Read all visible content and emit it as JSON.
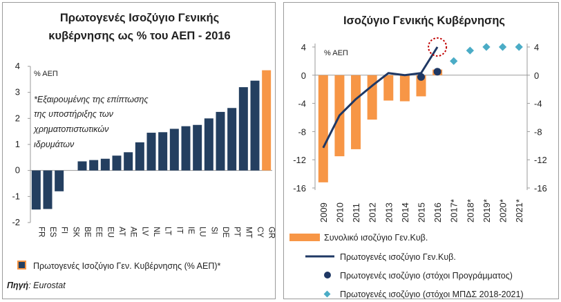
{
  "colors": {
    "navy": "#243f60",
    "orange": "#f79646",
    "teal": "#4bacc6",
    "line": "#1f3864",
    "marker": "#1f3864",
    "circle": "#c00000"
  },
  "left_chart": {
    "title_lines": [
      "Πρωτογενές Ισοζύγιο Γενικής",
      "κυβέρνησης ως % του ΑΕΠ - 2016"
    ],
    "unit_label": "% ΑΕΠ",
    "note_lines": [
      "*Εξαιρουμένης της επίπτωσης",
      "της υποστήριξης των",
      "χρηματοπιστωτικών",
      "ιδρυμάτων"
    ],
    "legend_label": "Πρωτογενές Ισοζύγιο Γεν. Κυβέρνησης (% ΑΕΠ)*",
    "source_label": "Πηγή",
    "source_value": ": Eurostat",
    "y_ticks": [
      "4",
      "3",
      "2",
      "1",
      "0",
      "-1",
      "-2"
    ]
  },
  "right_chart": {
    "title": "Ισοζύγιο Γενικής Κυβέρνησης",
    "unit_label": "% ΑΕΠ",
    "y_ticks": [
      "4",
      "0",
      "-4",
      "-8",
      "-12",
      "-16"
    ],
    "legend": [
      {
        "label": "Συνολικό ισοζύγιο Γεν.Κυβ."
      },
      {
        "label": "Πρωτογενές ισοζύγιο Γεν.Κυβ."
      },
      {
        "label": "Πρωτογενές ισοζύγιο (στόχοι Προγράμματος)"
      },
      {
        "label": "Πρωτογενές ισοζύγιο (στόχοι ΜΠΔΣ 2018-2021)"
      }
    ]
  },
  "chart_data": [
    {
      "type": "bar",
      "title": "Πρωτογενές Ισοζύγιο Γενικής κυβέρνησης ως % του ΑΕΠ - 2016",
      "ylabel": "% ΑΕΠ",
      "ylim": [
        -2,
        4
      ],
      "categories": [
        "FR",
        "ES",
        "FI",
        "SK",
        "BE",
        "EE",
        "EU",
        "AT",
        "AE",
        "LV",
        "NL",
        "LT",
        "IT",
        "IE",
        "LU",
        "SI",
        "DE",
        "PT",
        "MT",
        "CY",
        "GR"
      ],
      "series": [
        {
          "name": "Πρωτογενές Ισοζύγιο Γεν. Κυβέρνησης (% ΑΕΠ)*",
          "values": [
            -1.5,
            -1.48,
            -0.8,
            0.0,
            0.35,
            0.4,
            0.45,
            0.57,
            0.7,
            1.08,
            1.45,
            1.47,
            1.6,
            1.7,
            1.75,
            2.0,
            2.25,
            2.4,
            3.2,
            3.45,
            3.85
          ]
        }
      ],
      "highlight_category": "GR",
      "legend": "bottom",
      "grid": false
    },
    {
      "type": "bar",
      "title": "Ισοζύγιο Γενικής Κυβέρνησης",
      "ylabel": "% ΑΕΠ",
      "ylim": [
        -16,
        4
      ],
      "categories": [
        "2009",
        "2010",
        "2011",
        "2012",
        "2013",
        "2014",
        "2015",
        "2016",
        "2017*",
        "2018*",
        "2019*",
        "2020*",
        "2021*"
      ],
      "series": [
        {
          "name": "Συνολικό ισοζύγιο Γεν.Κυβ.",
          "kind": "bar",
          "values": [
            -15.2,
            -11.5,
            -10.5,
            -6.3,
            -3.6,
            -3.7,
            -3.0,
            0.8,
            null,
            null,
            null,
            null,
            null
          ]
        },
        {
          "name": "Πρωτογενές ισοζύγιο Γεν.Κυβ.",
          "kind": "line",
          "values": [
            -10.3,
            -5.7,
            -3.4,
            -1.5,
            0.3,
            0.0,
            0.3,
            4.0,
            null,
            null,
            null,
            null,
            null
          ]
        },
        {
          "name": "Πρωτογενές ισοζύγιο (στόχοι Προγράμματος)",
          "kind": "scatter",
          "values": [
            null,
            null,
            null,
            null,
            null,
            null,
            -0.25,
            0.5,
            null,
            null,
            null,
            null,
            null
          ]
        },
        {
          "name": "Πρωτογενές ισοζύγιο (στόχοι ΜΠΔΣ 2018-2021)",
          "kind": "scatter",
          "values": [
            null,
            null,
            null,
            null,
            null,
            null,
            null,
            null,
            2.0,
            3.5,
            4.0,
            4.0,
            4.0
          ]
        }
      ],
      "highlight_point": {
        "series": "Πρωτογενές ισοζύγιο Γεν.Κυβ.",
        "category": "2016"
      },
      "legend": "bottom",
      "grid": false
    }
  ]
}
